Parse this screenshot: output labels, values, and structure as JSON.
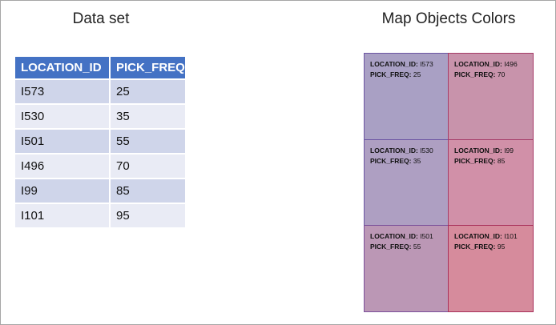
{
  "dataset": {
    "title": "Data set",
    "headers": [
      "LOCATION_ID",
      "PICK_FREQ"
    ],
    "header_color": "#4472c4",
    "rows": [
      [
        "I573",
        "25"
      ],
      [
        "I530",
        "35"
      ],
      [
        "I501",
        "55"
      ],
      [
        "I496",
        "70"
      ],
      [
        "I99",
        "85"
      ],
      [
        "I101",
        "95"
      ]
    ]
  },
  "map": {
    "title": "Map Objects Colors",
    "key_label": "LOCATION_ID:",
    "value_label": "PICK_FREQ:",
    "cells": [
      {
        "id": "I573",
        "freq": "25",
        "fill": "#a9a0c4",
        "border": "#6c55a3"
      },
      {
        "id": "I496",
        "freq": "70",
        "fill": "#c893ab",
        "border": "#a63c68"
      },
      {
        "id": "I530",
        "freq": "35",
        "fill": "#ae9fc2",
        "border": "#6c55a3"
      },
      {
        "id": "I99",
        "freq": "85",
        "fill": "#d190a8",
        "border": "#a63c68"
      },
      {
        "id": "I501",
        "freq": "55",
        "fill": "#bb97b5",
        "border": "#7a4f9a"
      },
      {
        "id": "I101",
        "freq": "95",
        "fill": "#d68b9c",
        "border": "#a8305a"
      }
    ]
  }
}
